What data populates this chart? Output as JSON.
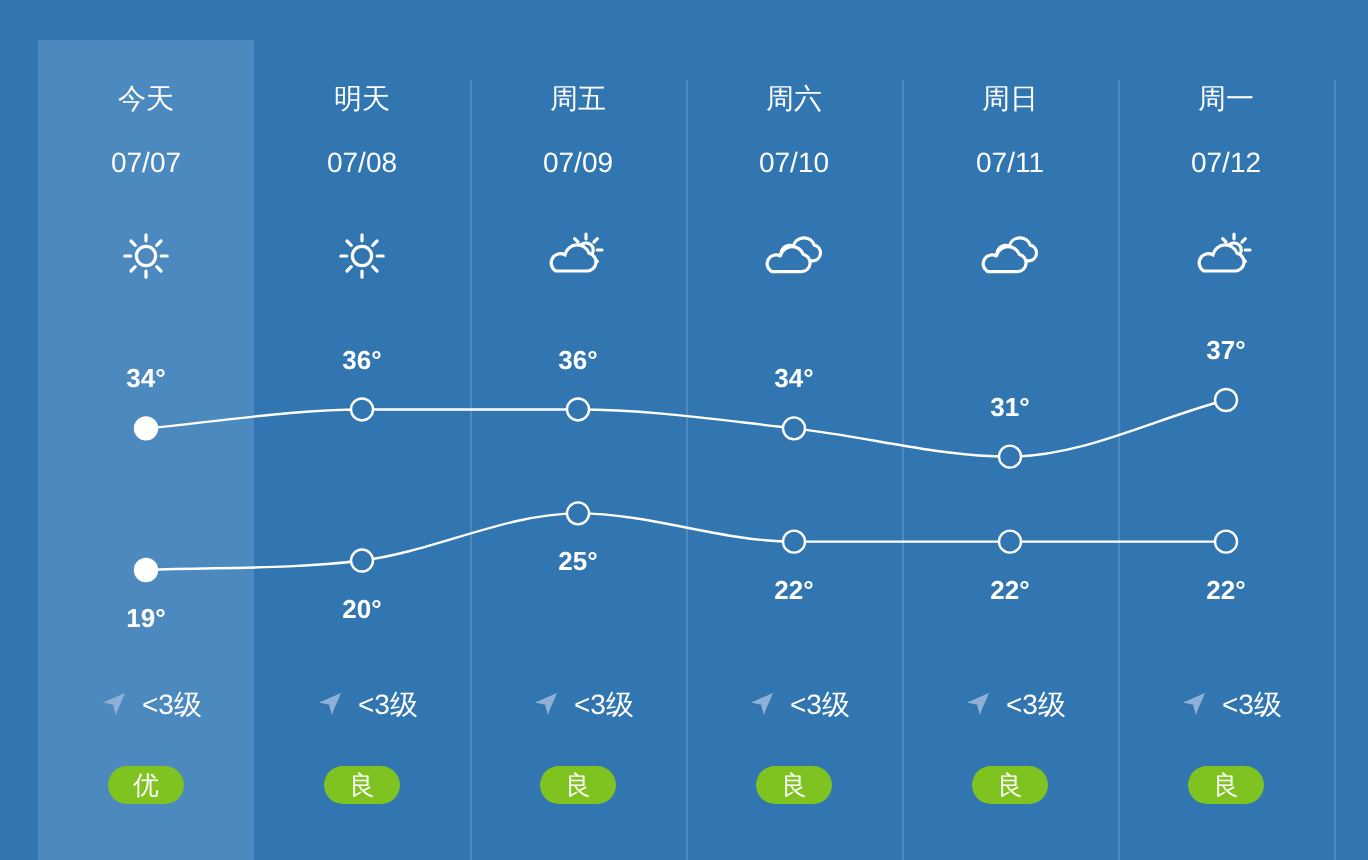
{
  "chart_data": {
    "type": "line",
    "categories": [
      "今天\n07/07",
      "明天\n07/08",
      "周五\n07/09",
      "周六\n07/10",
      "周日\n07/11",
      "周一\n07/12"
    ],
    "series": [
      {
        "color": "#ffffff",
        "values": [
          34,
          36,
          36,
          34,
          31,
          37
        ],
        "value_labels": [
          "34°",
          "36°",
          "36°",
          "34°",
          "31°",
          "37°"
        ]
      },
      {
        "color": "#ffffff",
        "values": [
          19,
          20,
          25,
          22,
          22,
          22
        ],
        "value_labels": [
          "19°",
          "20°",
          "25°",
          "22°",
          "22°",
          "22°"
        ]
      }
    ],
    "bands": [
      {
        "axis": "x",
        "from": "今天\n07/07",
        "to": "今天\n07/07",
        "color": "#4c89bf"
      }
    ],
    "tick_labels": "x",
    "grid": "x",
    "marker": "circle",
    "line_style": "solid",
    "annotations": [
      "<3级",
      "<3级",
      "<3级",
      "<3级",
      "<3级",
      "<3级",
      "优",
      "良",
      "良",
      "良",
      "良",
      "良"
    ]
  }
}
